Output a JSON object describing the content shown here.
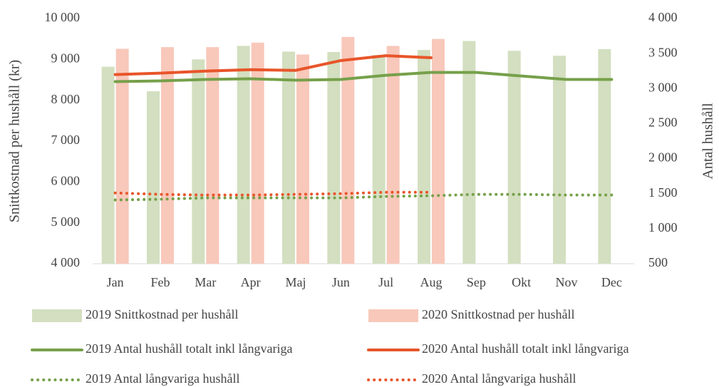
{
  "chart_data": {
    "type": "bar",
    "y_label": "Snittkostnad per hushåll (kr)",
    "y2_label": "Antal hushåll",
    "categories": [
      "Jan",
      "Feb",
      "Mar",
      "Apr",
      "Maj",
      "Jun",
      "Jul",
      "Aug",
      "Sep",
      "Okt",
      "Nov",
      "Dec"
    ],
    "ylim": [
      4000,
      10000
    ],
    "yticks": [
      {
        "value": 4000,
        "label": "4 000"
      },
      {
        "value": 5000,
        "label": "5 000"
      },
      {
        "value": 6000,
        "label": "6 000"
      },
      {
        "value": 7000,
        "label": "7 000"
      },
      {
        "value": 8000,
        "label": "8 000"
      },
      {
        "value": 9000,
        "label": "9 000"
      },
      {
        "value": 10000,
        "label": "10 000"
      }
    ],
    "y2lim": [
      500,
      4000
    ],
    "y2ticks": [
      500,
      {
        "value": 1000,
        "label": "1 000"
      },
      {
        "value": 1500,
        "label": "1 500"
      },
      {
        "value": 2000,
        "label": "2 000"
      },
      {
        "value": 2500,
        "label": "2 500"
      },
      {
        "value": 3000,
        "label": "3 000"
      },
      {
        "value": 3500,
        "label": "3 500"
      },
      {
        "value": 4000,
        "label": "4 000"
      }
    ],
    "grid": false,
    "legend": "bottom",
    "series": [
      {
        "name": "2019 Snittkostnad per hushåll",
        "type": "bar",
        "color": "#d3dfc0",
        "values": [
          8820,
          8220,
          9000,
          9330,
          9190,
          9180,
          9110,
          9230,
          9450,
          9210,
          9090,
          9250
        ]
      },
      {
        "name": "2020 Snittkostnad per hushåll",
        "type": "bar",
        "color": "#f8c8ba",
        "values": [
          9260,
          9300,
          9300,
          9410,
          9120,
          9550,
          9330,
          9500,
          null,
          null,
          null,
          null
        ]
      },
      {
        "name": "2019 Antal hushåll totalt inkl långvariga",
        "type": "line",
        "style": "solid",
        "axis": "y2",
        "color": "#76a04a",
        "values": [
          3100,
          3110,
          3130,
          3140,
          3120,
          3130,
          3190,
          3230,
          3230,
          3180,
          3130,
          3130
        ]
      },
      {
        "name": "2020 Antal hushåll totalt inkl långvariga",
        "type": "line",
        "style": "solid",
        "axis": "y2",
        "color": "#e8552a",
        "values": [
          3200,
          3220,
          3250,
          3270,
          3260,
          3400,
          3470,
          3440,
          null,
          null,
          null,
          null
        ]
      },
      {
        "name": "2019 Antal långvariga hushåll",
        "type": "line",
        "style": "dotted",
        "axis": "y2",
        "color": "#76a04a",
        "values": [
          1410,
          1420,
          1440,
          1440,
          1440,
          1440,
          1460,
          1470,
          1490,
          1490,
          1480,
          1480
        ]
      },
      {
        "name": "2020 Antal långvariga hushåll",
        "type": "line",
        "style": "dotted",
        "axis": "y2",
        "color": "#e8552a",
        "values": [
          1510,
          1490,
          1480,
          1480,
          1490,
          1500,
          1520,
          1520,
          null,
          null,
          null,
          null
        ]
      }
    ]
  }
}
